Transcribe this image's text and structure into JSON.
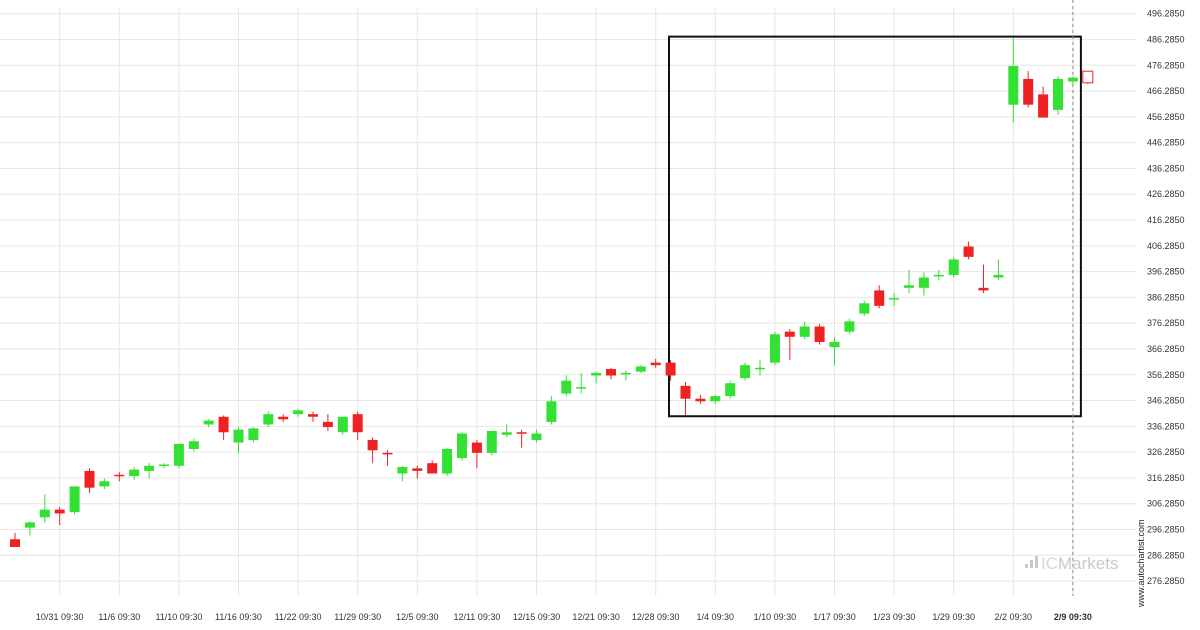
{
  "chart_data": {
    "type": "candlestick",
    "y_ticks": [
      "496.2850",
      "486.2850",
      "476.2850",
      "466.2850",
      "456.2850",
      "446.2850",
      "436.2850",
      "426.2850",
      "416.2850",
      "406.2850",
      "396.2850",
      "386.2850",
      "376.2850",
      "366.2850",
      "356.2850",
      "346.2850",
      "336.2850",
      "326.2850",
      "316.2850",
      "306.2850",
      "296.2850",
      "286.2850",
      "276.2850"
    ],
    "ylim": [
      270.5,
      498.5
    ],
    "x_ticks": [
      "10/31 09:30",
      "11/6 09:30",
      "11/10 09:30",
      "11/16 09:30",
      "11/22 09:30",
      "11/29 09:30",
      "12/5 09:30",
      "12/11 09:30",
      "12/15 09:30",
      "12/21 09:30",
      "12/28 09:30",
      "1/4 09:30",
      "1/10 09:30",
      "1/17 09:30",
      "1/23 09:30",
      "1/29 09:30",
      "2/2 09:30",
      "2/9 09:30"
    ],
    "current_label": "2/9 09:30",
    "up_color": "#33e033",
    "down_color": "#ee2222",
    "candles": [
      {
        "o": 292.5,
        "h": 295,
        "l": 289.5,
        "c": 289.5
      },
      {
        "o": 297,
        "h": 299.5,
        "l": 294,
        "c": 299
      },
      {
        "o": 301,
        "h": 310,
        "l": 299,
        "c": 304
      },
      {
        "o": 304,
        "h": 305,
        "l": 298,
        "c": 302.5
      },
      {
        "o": 303,
        "h": 313,
        "l": 302,
        "c": 313
      },
      {
        "o": 319,
        "h": 320,
        "l": 310.5,
        "c": 312.5
      },
      {
        "o": 313,
        "h": 316,
        "l": 312,
        "c": 315
      },
      {
        "o": 317.5,
        "h": 318.5,
        "l": 315,
        "c": 317
      },
      {
        "o": 317,
        "h": 320.5,
        "l": 315.5,
        "c": 319.5
      },
      {
        "o": 319,
        "h": 322,
        "l": 316,
        "c": 321
      },
      {
        "o": 321,
        "h": 322,
        "l": 320,
        "c": 321.5
      },
      {
        "o": 321,
        "h": 329.5,
        "l": 320,
        "c": 329.5
      },
      {
        "o": 327.5,
        "h": 331.5,
        "l": 326.5,
        "c": 330.5
      },
      {
        "o": 337,
        "h": 339,
        "l": 336,
        "c": 338.5
      },
      {
        "o": 340,
        "h": 340.5,
        "l": 331,
        "c": 334
      },
      {
        "o": 330,
        "h": 336,
        "l": 326,
        "c": 335
      },
      {
        "o": 331,
        "h": 336,
        "l": 330,
        "c": 335.5
      },
      {
        "o": 337,
        "h": 342,
        "l": 336,
        "c": 341
      },
      {
        "o": 340,
        "h": 341,
        "l": 338,
        "c": 339
      },
      {
        "o": 341,
        "h": 343,
        "l": 340,
        "c": 342.5
      },
      {
        "o": 341,
        "h": 342,
        "l": 338,
        "c": 340
      },
      {
        "o": 338,
        "h": 341,
        "l": 334.5,
        "c": 336
      },
      {
        "o": 334,
        "h": 340,
        "l": 333,
        "c": 340
      },
      {
        "o": 341,
        "h": 342,
        "l": 331,
        "c": 334
      },
      {
        "o": 331,
        "h": 332,
        "l": 322,
        "c": 327
      },
      {
        "o": 326,
        "h": 327,
        "l": 321,
        "c": 325.5
      },
      {
        "o": 318,
        "h": 321,
        "l": 315,
        "c": 320.5
      },
      {
        "o": 320,
        "h": 321,
        "l": 316,
        "c": 319
      },
      {
        "o": 322,
        "h": 323,
        "l": 318,
        "c": 318
      },
      {
        "o": 318,
        "h": 328,
        "l": 317,
        "c": 327.5
      },
      {
        "o": 324,
        "h": 334,
        "l": 323,
        "c": 333.5
      },
      {
        "o": 330,
        "h": 331,
        "l": 320,
        "c": 326
      },
      {
        "o": 326,
        "h": 334,
        "l": 325,
        "c": 334.5
      },
      {
        "o": 333,
        "h": 337,
        "l": 332,
        "c": 334
      },
      {
        "o": 334,
        "h": 335,
        "l": 328,
        "c": 333.5
      },
      {
        "o": 331,
        "h": 335,
        "l": 330,
        "c": 333.5
      },
      {
        "o": 338,
        "h": 348,
        "l": 337,
        "c": 346
      },
      {
        "o": 349,
        "h": 356,
        "l": 348,
        "c": 354
      },
      {
        "o": 351,
        "h": 357,
        "l": 349,
        "c": 351.5
      },
      {
        "o": 356,
        "h": 357.5,
        "l": 353,
        "c": 357
      },
      {
        "o": 358.5,
        "h": 359,
        "l": 354.5,
        "c": 356
      },
      {
        "o": 357,
        "h": 358,
        "l": 354,
        "c": 357
      },
      {
        "o": 357.5,
        "h": 360,
        "l": 357,
        "c": 359.5
      },
      {
        "o": 361,
        "h": 362.5,
        "l": 359,
        "c": 360
      },
      {
        "o": 361,
        "h": 362,
        "l": 354,
        "c": 356
      },
      {
        "o": 352,
        "h": 353.5,
        "l": 340.5,
        "c": 347
      },
      {
        "o": 347,
        "h": 348.5,
        "l": 345,
        "c": 346
      },
      {
        "o": 346,
        "h": 348.5,
        "l": 345,
        "c": 348
      },
      {
        "o": 348,
        "h": 354,
        "l": 347,
        "c": 353
      },
      {
        "o": 355,
        "h": 361,
        "l": 354,
        "c": 360
      },
      {
        "o": 359,
        "h": 362,
        "l": 356,
        "c": 359
      },
      {
        "o": 361,
        "h": 373,
        "l": 360,
        "c": 372
      },
      {
        "o": 373,
        "h": 374,
        "l": 362,
        "c": 371
      },
      {
        "o": 371,
        "h": 377,
        "l": 370,
        "c": 375
      },
      {
        "o": 375,
        "h": 376,
        "l": 368,
        "c": 369
      },
      {
        "o": 367,
        "h": 371,
        "l": 360,
        "c": 369
      },
      {
        "o": 373,
        "h": 378,
        "l": 372,
        "c": 377
      },
      {
        "o": 380,
        "h": 385,
        "l": 379,
        "c": 384
      },
      {
        "o": 389,
        "h": 391,
        "l": 382,
        "c": 383
      },
      {
        "o": 386,
        "h": 388,
        "l": 383,
        "c": 386
      },
      {
        "o": 390,
        "h": 397,
        "l": 388,
        "c": 391
      },
      {
        "o": 390,
        "h": 396,
        "l": 387,
        "c": 394
      },
      {
        "o": 395,
        "h": 397,
        "l": 393,
        "c": 395
      },
      {
        "o": 395,
        "h": 402,
        "l": 394,
        "c": 401
      },
      {
        "o": 406,
        "h": 408,
        "l": 401,
        "c": 402
      },
      {
        "o": 390,
        "h": 399,
        "l": 388,
        "c": 389
      },
      {
        "o": 394,
        "h": 401,
        "l": 393,
        "c": 395
      },
      {
        "o": 461,
        "h": 487,
        "l": 454,
        "c": 476
      },
      {
        "o": 471,
        "h": 474,
        "l": 460,
        "c": 461
      },
      {
        "o": 465,
        "h": 468,
        "l": 456,
        "c": 456
      },
      {
        "o": 459,
        "h": 472,
        "l": 457,
        "c": 471
      },
      {
        "o": 470,
        "h": 472,
        "l": 469,
        "c": 471.5
      },
      {
        "o": 474,
        "h": 474,
        "l": 469,
        "c": 469.5,
        "hollow": true
      }
    ],
    "highlight_box": {
      "x_from": "12/28 09:30",
      "x_to": "2/9 09:30",
      "y_from": 340.2,
      "y_to": 487.4
    },
    "vline_at": "2/9 09:30"
  },
  "watermark": {
    "text": "www.autochartist.com"
  },
  "brand": {
    "prefix": "IC",
    "name": "Markets"
  }
}
